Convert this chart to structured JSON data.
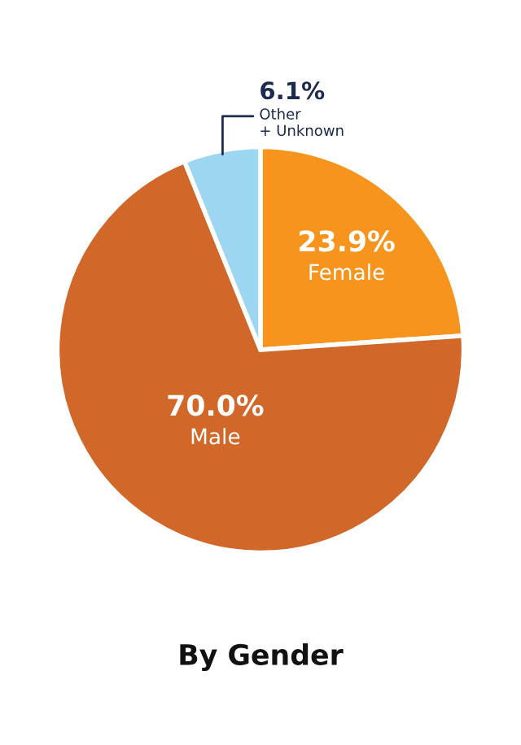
{
  "chart_data": {
    "type": "pie",
    "title": "By Gender",
    "categories": [
      "Female",
      "Male",
      "Other\n+ Unknown"
    ],
    "values": [
      23.9,
      70.0,
      6.1
    ],
    "value_labels": [
      "23.9%",
      "70.0%",
      "6.1%"
    ],
    "colors": [
      "#f7941d",
      "#d2672a",
      "#9dd6f0"
    ]
  }
}
